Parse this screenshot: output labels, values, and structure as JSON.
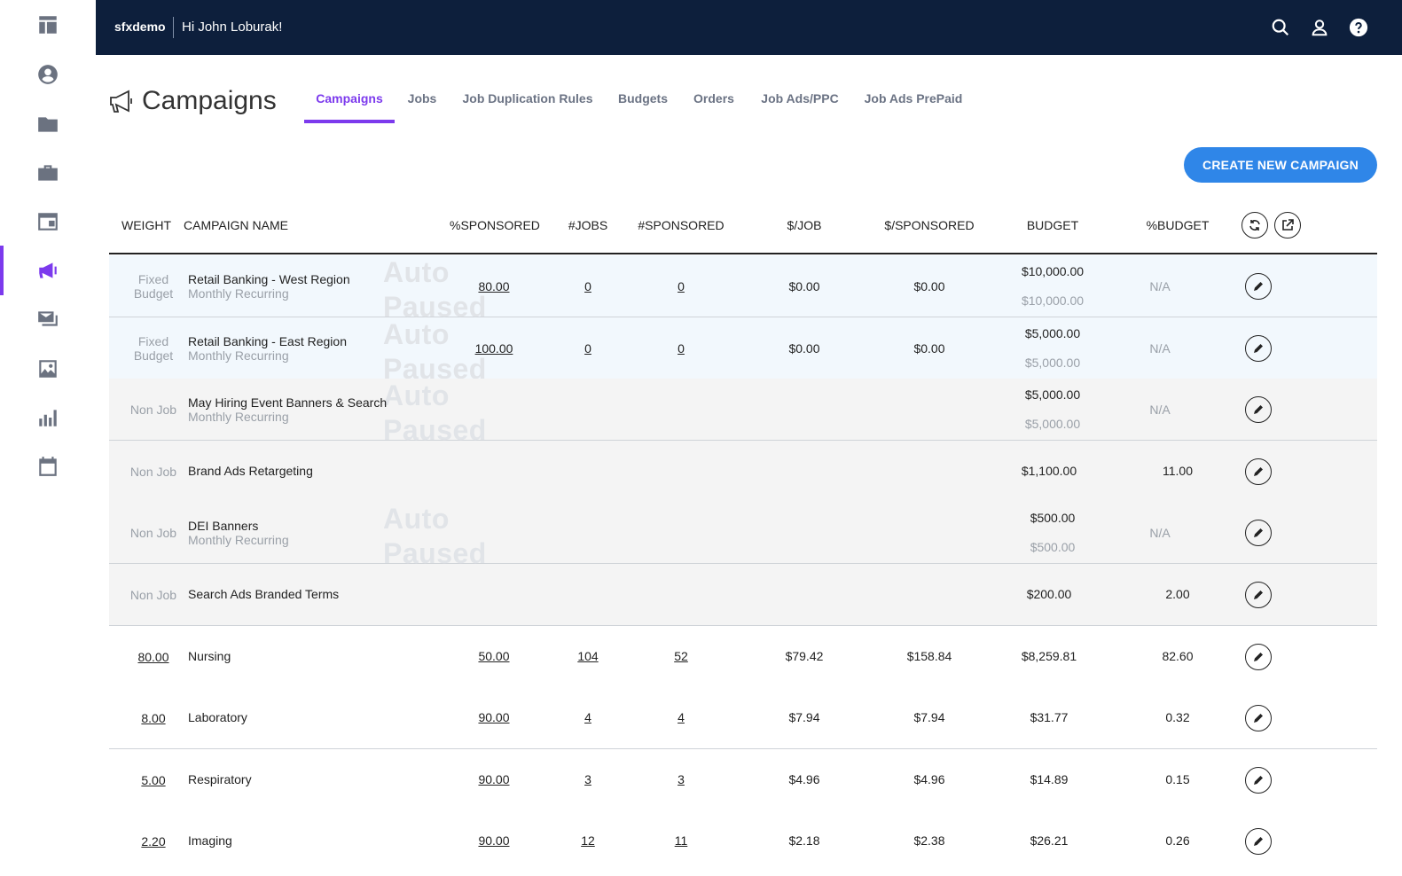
{
  "topbar": {
    "brand": "sfxdemo",
    "greeting": "Hi John Loburak!"
  },
  "page": {
    "title": "Campaigns",
    "tabs": [
      {
        "label": "Campaigns",
        "active": true
      },
      {
        "label": "Jobs"
      },
      {
        "label": "Job Duplication Rules"
      },
      {
        "label": "Budgets"
      },
      {
        "label": "Orders"
      },
      {
        "label": "Job Ads/PPC"
      },
      {
        "label": "Job Ads PrePaid"
      }
    ],
    "create_button": "CREATE NEW CAMPAIGN"
  },
  "table": {
    "headers": {
      "weight": "WEIGHT",
      "name": "CAMPAIGN NAME",
      "pct_sponsored": "%SPONSORED",
      "jobs": "#JOBS",
      "sponsored": "#SPONSORED",
      "per_job": "$/JOB",
      "per_sponsored": "$/SPONSORED",
      "budget": "BUDGET",
      "pct_budget": "%BUDGET"
    },
    "paused_label_1": "Auto",
    "paused_label_2": "Paused",
    "rows": [
      {
        "weight_1": "Fixed",
        "weight_2": "Budget",
        "name": "Retail Banking - West Region",
        "sub": "Monthly Recurring",
        "pct_sponsored": "80.00",
        "jobs": "0",
        "sponsored": "0",
        "per_job": "$0.00",
        "per_sponsored": "$0.00",
        "budget": "$10,000.00",
        "budget_sub": "$10,000.00",
        "pct_budget": "N/A"
      },
      {
        "weight_1": "Fixed",
        "weight_2": "Budget",
        "name": "Retail Banking - East Region",
        "sub": "Monthly Recurring",
        "pct_sponsored": "100.00",
        "jobs": "0",
        "sponsored": "0",
        "per_job": "$0.00",
        "per_sponsored": "$0.00",
        "budget": "$5,000.00",
        "budget_sub": "$5,000.00",
        "pct_budget": "N/A"
      },
      {
        "weight": "Non Job",
        "name": "May Hiring Event Banners & Search",
        "sub": "Monthly Recurring",
        "budget": "$5,000.00",
        "budget_sub": "$5,000.00",
        "pct_budget": "N/A"
      },
      {
        "weight": "Non Job",
        "name": "Brand Ads Retargeting",
        "budget": "$1,100.00",
        "pct_budget": "11.00"
      },
      {
        "weight": "Non Job",
        "name": "DEI Banners",
        "sub": "Monthly Recurring",
        "budget": "$500.00",
        "budget_sub": "$500.00",
        "pct_budget": "N/A"
      },
      {
        "weight": "Non Job",
        "name": "Search Ads Branded Terms",
        "budget": "$200.00",
        "pct_budget": "2.00"
      },
      {
        "weight": "80.00",
        "name": "Nursing",
        "pct_sponsored": "50.00",
        "jobs": "104",
        "sponsored": "52",
        "per_job": "$79.42",
        "per_sponsored": "$158.84",
        "budget": "$8,259.81",
        "pct_budget": "82.60"
      },
      {
        "weight": "8.00",
        "name": "Laboratory",
        "pct_sponsored": "90.00",
        "jobs": "4",
        "sponsored": "4",
        "per_job": "$7.94",
        "per_sponsored": "$7.94",
        "budget": "$31.77",
        "pct_budget": "0.32"
      },
      {
        "weight": "5.00",
        "name": "Respiratory",
        "pct_sponsored": "90.00",
        "jobs": "3",
        "sponsored": "3",
        "per_job": "$4.96",
        "per_sponsored": "$4.96",
        "budget": "$14.89",
        "pct_budget": "0.15"
      },
      {
        "weight": "2.20",
        "name": "Imaging",
        "pct_sponsored": "90.00",
        "jobs": "12",
        "sponsored": "11",
        "per_job": "$2.18",
        "per_sponsored": "$2.38",
        "budget": "$26.21",
        "pct_budget": "0.26"
      }
    ]
  },
  "colors": {
    "accent": "#7c3aed",
    "topbar": "#0d1f3c",
    "button": "#2f86e8"
  }
}
